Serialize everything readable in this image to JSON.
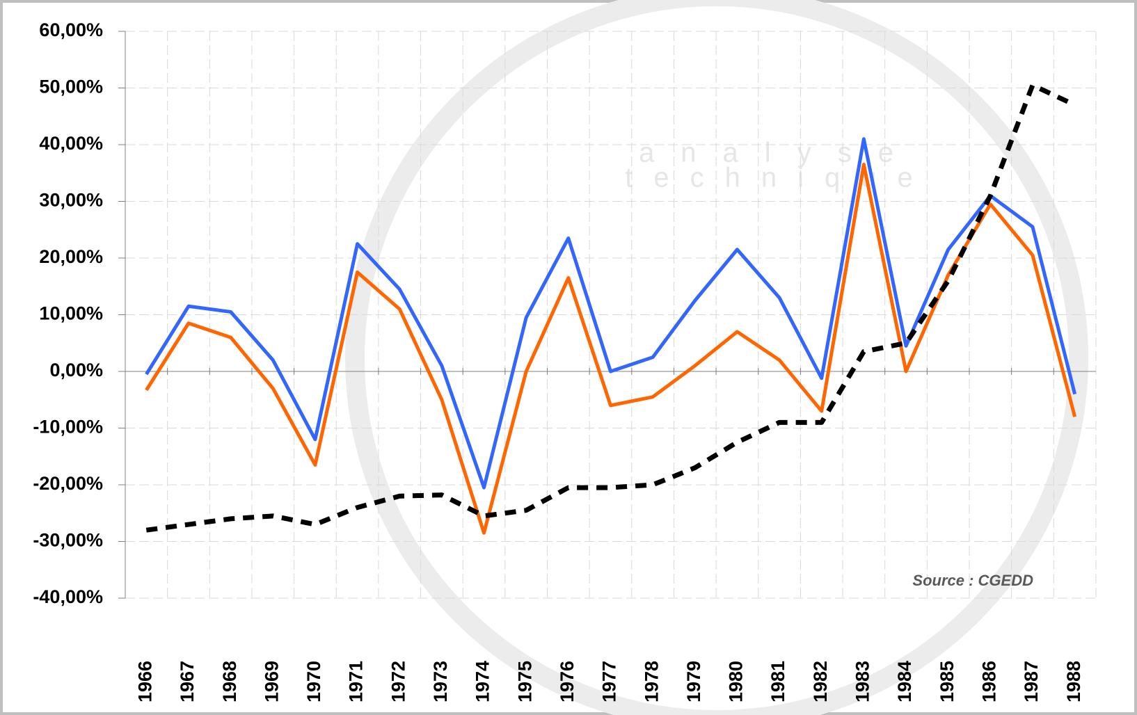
{
  "chart_data": {
    "type": "line",
    "annotation": "Source : CGEDD",
    "watermark": [
      "analyse",
      "technique"
    ],
    "categories": [
      "1966",
      "1967",
      "1968",
      "1969",
      "1970",
      "1971",
      "1972",
      "1973",
      "1974",
      "1975",
      "1976",
      "1977",
      "1978",
      "1979",
      "1980",
      "1981",
      "1982",
      "1983",
      "1984",
      "1985",
      "1986",
      "1987",
      "1988"
    ],
    "series": [
      {
        "color": "#3366ff",
        "line_style": "solid",
        "values": [
          -0.5,
          11.5,
          10.5,
          2,
          -12,
          22.5,
          14.5,
          1,
          -20.5,
          9.5,
          23.5,
          0,
          2.5,
          12.5,
          21.5,
          13,
          -1.2,
          41,
          4.5,
          21.5,
          31,
          25.5,
          -4
        ]
      },
      {
        "color": "#ff6600",
        "line_style": "solid",
        "values": [
          -3.3,
          8.5,
          6,
          -3,
          -16.5,
          17.5,
          11,
          -5,
          -28.5,
          0,
          16.5,
          -6,
          -4.5,
          1,
          7,
          2,
          -7,
          36.5,
          0,
          17,
          29.5,
          20.5,
          -8
        ]
      },
      {
        "color": "#000000",
        "line_style": "dashed",
        "values": [
          -28,
          -27,
          -26,
          -25.5,
          -27,
          -24,
          -22,
          -21.8,
          -25.5,
          -24.5,
          -20.5,
          -20.5,
          -20,
          -17,
          -12.5,
          -9,
          -9,
          3.5,
          5,
          16,
          31,
          50.5,
          47
        ]
      }
    ],
    "ylim": [
      -40,
      60
    ],
    "yticks": [
      {
        "value": -40,
        "label": "-40,00%"
      },
      {
        "value": -30,
        "label": "-30,00%"
      },
      {
        "value": -20,
        "label": "-20,00%"
      },
      {
        "value": -10,
        "label": "-10,00%"
      },
      {
        "value": 0,
        "label": "0,00%"
      },
      {
        "value": 10,
        "label": "10,00%"
      },
      {
        "value": 20,
        "label": "20,00%"
      },
      {
        "value": 30,
        "label": "30,00%"
      },
      {
        "value": 40,
        "label": "40,00%"
      },
      {
        "value": 50,
        "label": "50,00%"
      },
      {
        "value": 60,
        "label": "60,00%"
      }
    ],
    "grid": true
  }
}
